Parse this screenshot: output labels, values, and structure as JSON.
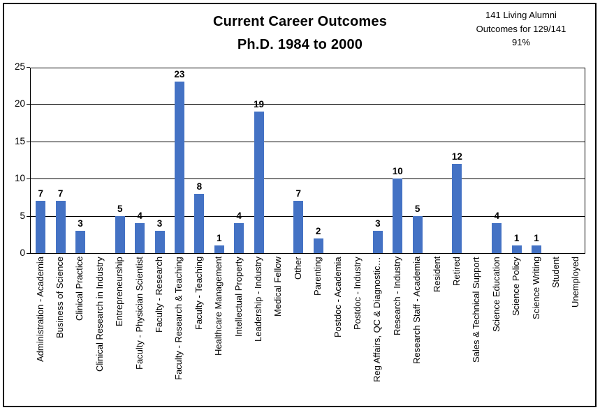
{
  "header": {
    "title_line1": "Current Career Outcomes",
    "title_line2": "Ph.D. 1984 to 2000",
    "annotation_lines": [
      "141 Living Alumni",
      "Outcomes for 129/141",
      "91%"
    ]
  },
  "chart_data": {
    "type": "bar",
    "title": "Current Career Outcomes Ph.D. 1984 to 2000",
    "annotation": "141 Living Alumni Outcomes for 129/141 91%",
    "categories": [
      "Administration - Academia",
      "Business of Science",
      "Clinical Practice",
      "Clinical Research in Industry",
      "Entrepreneurship",
      "Faculty - Physician Scientist",
      "Faculty - Research",
      "Faculty - Research & Teaching",
      "Faculty - Teaching",
      "Healthcare Management",
      "Intellectual Property",
      "Leadership - Industry",
      "Medical Fellow",
      "Other",
      "Parenting",
      "Postdoc - Academia",
      "Postdoc - Industry",
      "Reg Affairs, QC & Diagnostic…",
      "Research - Industry",
      "Research Staff - Academia",
      "Resident",
      "Retired",
      "Sales & Technical Support",
      "Science Education",
      "Science Policy",
      "Science Writing",
      "Student",
      "Unemployed"
    ],
    "values": [
      7,
      7,
      3,
      0,
      5,
      4,
      3,
      23,
      8,
      1,
      4,
      19,
      0,
      7,
      2,
      0,
      0,
      3,
      10,
      5,
      0,
      12,
      0,
      4,
      1,
      1,
      0,
      0
    ],
    "xlabel": "",
    "ylabel": "",
    "ylim": [
      0,
      25
    ],
    "yticks": [
      0,
      5,
      10,
      15,
      20,
      25
    ],
    "bar_color": "#4472C4",
    "grid": true,
    "value_labels": true,
    "legend_position": "none"
  }
}
